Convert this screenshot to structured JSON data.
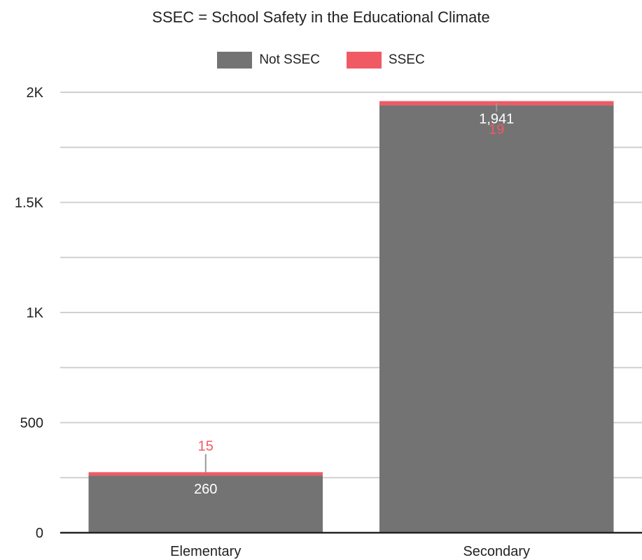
{
  "chart_data": {
    "type": "bar",
    "stacked": true,
    "title": "SSEC = School Safety in the Educational Climate",
    "categories": [
      "Elementary",
      "Secondary"
    ],
    "series": [
      {
        "name": "Not SSEC",
        "color": "#737373",
        "label_color": "#ffffff",
        "values": [
          260,
          1941
        ],
        "labels": [
          "260",
          "1,941"
        ]
      },
      {
        "name": "SSEC",
        "color": "#f05a64",
        "label_color": "#f05a64",
        "values": [
          15,
          19
        ],
        "labels": [
          "15",
          "19"
        ]
      }
    ],
    "yticks": [
      {
        "value": 0,
        "label": "0"
      },
      {
        "value": 500,
        "label": "500"
      },
      {
        "value": 1000,
        "label": "1K"
      },
      {
        "value": 1500,
        "label": "1.5K"
      },
      {
        "value": 2000,
        "label": "2K"
      }
    ],
    "minor_gridlines": [
      250,
      750,
      1250,
      1750
    ],
    "ylim": [
      0,
      2000
    ],
    "grid": true,
    "legend_position": "top-center",
    "xlabel": "",
    "ylabel": ""
  }
}
